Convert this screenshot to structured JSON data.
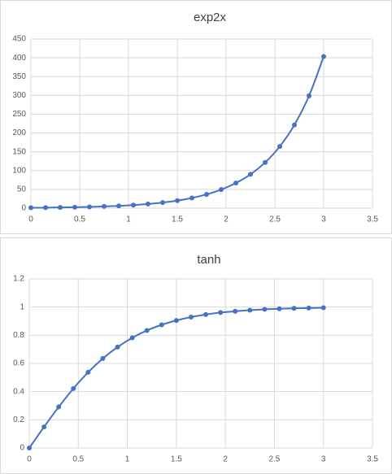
{
  "chart_data": [
    {
      "type": "line",
      "title": "exp2x",
      "x": [
        0,
        0.15,
        0.3,
        0.45,
        0.6,
        0.75,
        0.9,
        1.05,
        1.2,
        1.35,
        1.5,
        1.65,
        1.8,
        1.95,
        2.1,
        2.25,
        2.4,
        2.55,
        2.7,
        2.85,
        3
      ],
      "values": [
        1,
        1.35,
        1.82,
        2.46,
        3.32,
        4.48,
        6.05,
        8.17,
        11.02,
        14.88,
        20.09,
        27.11,
        36.6,
        49.4,
        66.69,
        90.02,
        121.51,
        164.02,
        221.41,
        298.87,
        403.43
      ],
      "color": "#4472c4",
      "xlim": [
        0,
        3.5
      ],
      "xticks": [
        0,
        0.5,
        1,
        1.5,
        2,
        2.5,
        3,
        3.5
      ],
      "ylim": [
        0,
        450
      ],
      "yticks": [
        0,
        50,
        100,
        150,
        200,
        250,
        300,
        350,
        400,
        450
      ],
      "grid": true
    },
    {
      "type": "line",
      "title": "tanh",
      "x": [
        0,
        0.15,
        0.3,
        0.45,
        0.6,
        0.75,
        0.9,
        1.05,
        1.2,
        1.35,
        1.5,
        1.65,
        1.8,
        1.95,
        2.1,
        2.25,
        2.4,
        2.55,
        2.7,
        2.85,
        3
      ],
      "values": [
        0,
        0.149,
        0.291,
        0.422,
        0.537,
        0.635,
        0.716,
        0.782,
        0.834,
        0.874,
        0.905,
        0.929,
        0.947,
        0.961,
        0.97,
        0.978,
        0.984,
        0.988,
        0.991,
        0.993,
        0.995
      ],
      "color": "#4472c4",
      "xlim": [
        0,
        3.5
      ],
      "xticks": [
        0,
        0.5,
        1,
        1.5,
        2,
        2.5,
        3,
        3.5
      ],
      "ylim": [
        0,
        1.2
      ],
      "yticks": [
        0,
        0.2,
        0.4,
        0.6,
        0.8,
        1,
        1.2
      ],
      "grid": true
    }
  ]
}
